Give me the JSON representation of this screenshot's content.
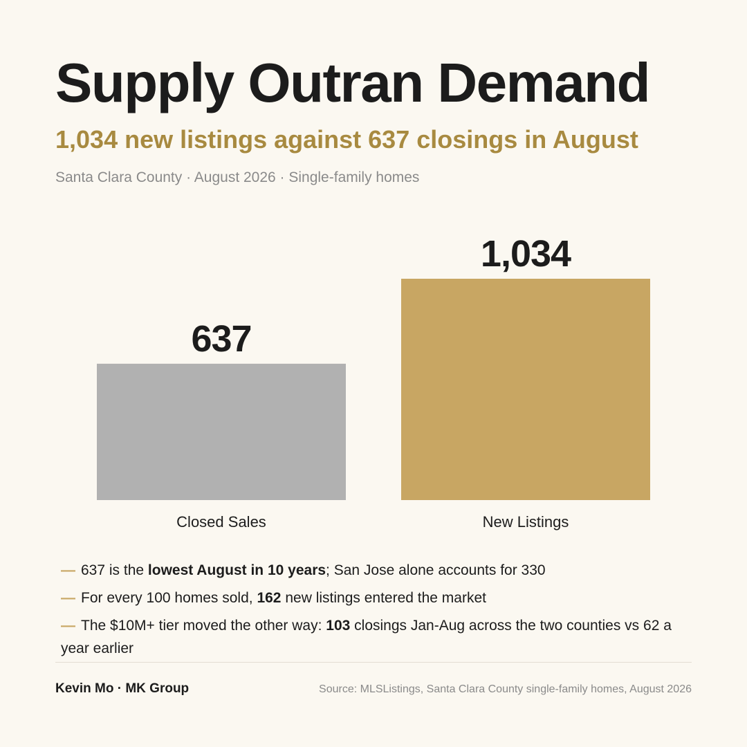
{
  "title": "Supply Outran Demand",
  "subtitle": "1,034 new listings against 637 closings in August",
  "meta": "Santa Clara County · August 2026 · Single-family homes",
  "chart_data": {
    "type": "bar",
    "categories": [
      "Closed Sales",
      "New Listings"
    ],
    "values": [
      637,
      1034
    ],
    "value_labels": [
      "637",
      "1,034"
    ],
    "colors": [
      "#b1b1b1",
      "#c8a663"
    ],
    "ylim": [
      0,
      1034
    ],
    "grid": false,
    "legend": "none"
  },
  "bullets": [
    {
      "marker": "—",
      "before": "637 is the ",
      "bold": "lowest August in 10 years",
      "after": "; San Jose alone accounts for 330"
    },
    {
      "marker": "—",
      "before": "For every 100 homes sold, ",
      "bold": "162",
      "after": " new listings entered the market"
    },
    {
      "marker": "—",
      "before": "The $10M+ tier moved the other way: ",
      "bold": "103",
      "after": " closings Jan-Aug across the two counties vs 62 a year earlier"
    }
  ],
  "footer": {
    "author": "Kevin Mo · MK Group",
    "source": "Source: MLSListings, Santa Clara County single-family homes, August 2026"
  }
}
